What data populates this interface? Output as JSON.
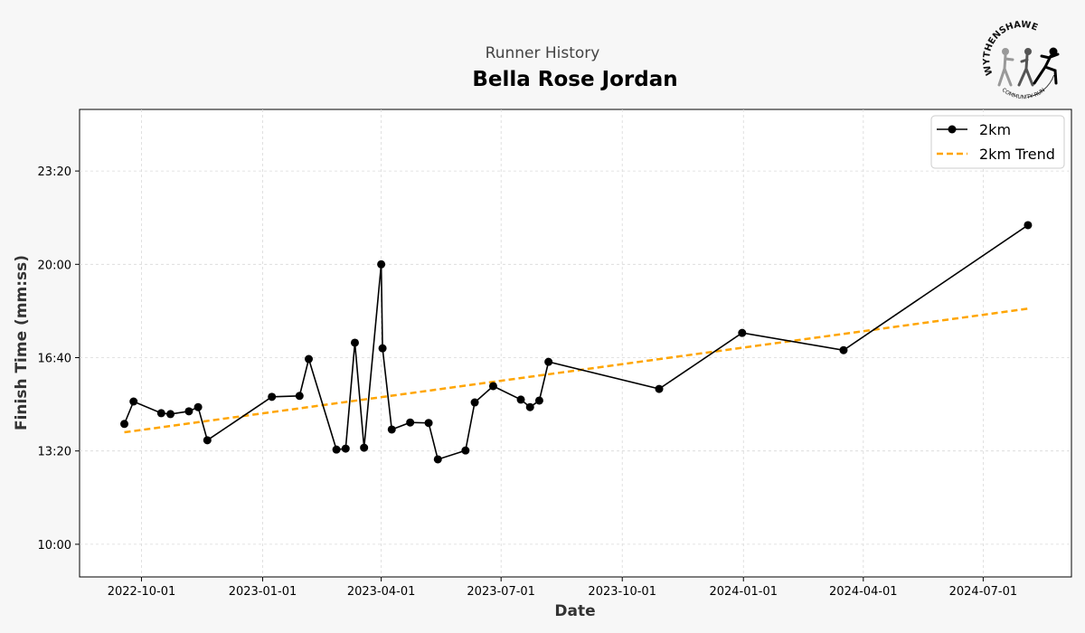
{
  "header": {
    "subtitle": "Runner History",
    "title": "Bella Rose Jordan",
    "logo_text": "WYTHENSHAWE COMMUNITY RUN"
  },
  "chart_data": {
    "type": "line",
    "title": "Bella Rose Jordan",
    "subtitle": "Runner History",
    "xlabel": "Date",
    "ylabel": "Finish Time (mm:ss)",
    "xlim": [
      "2022-08-15",
      "2024-09-06"
    ],
    "ylim_seconds": [
      530,
      1532
    ],
    "grid": true,
    "legend_position": "top-right",
    "x_ticks": [
      "2022-10-01",
      "2023-01-01",
      "2023-04-01",
      "2023-07-01",
      "2023-10-01",
      "2024-01-01",
      "2024-04-01",
      "2024-07-01"
    ],
    "y_ticks": [
      {
        "label": "10:00",
        "seconds": 600
      },
      {
        "label": "13:20",
        "seconds": 800
      },
      {
        "label": "16:40",
        "seconds": 1000
      },
      {
        "label": "20:00",
        "seconds": 1200
      },
      {
        "label": "23:20",
        "seconds": 1400
      }
    ],
    "series": [
      {
        "name": "2km",
        "color": "#000000",
        "style": "solid-markers",
        "points": [
          [
            "2022-09-18",
            "14:18"
          ],
          [
            "2022-09-25",
            "15:06"
          ],
          [
            "2022-10-16",
            "14:41"
          ],
          [
            "2022-10-23",
            "14:39"
          ],
          [
            "2022-11-06",
            "14:45"
          ],
          [
            "2022-11-13",
            "14:54"
          ],
          [
            "2022-11-20",
            "13:43"
          ],
          [
            "2023-01-08",
            "15:16"
          ],
          [
            "2023-01-29",
            "15:18"
          ],
          [
            "2023-02-05",
            "16:37"
          ],
          [
            "2023-02-26",
            "13:23"
          ],
          [
            "2023-03-05",
            "13:25"
          ],
          [
            "2023-03-12",
            "17:12"
          ],
          [
            "2023-03-19",
            "13:27"
          ],
          [
            "2023-04-01",
            "20:00"
          ],
          [
            "2023-04-02",
            "17:00"
          ],
          [
            "2023-04-09",
            "14:06"
          ],
          [
            "2023-04-23",
            "14:21"
          ],
          [
            "2023-05-07",
            "14:20"
          ],
          [
            "2023-05-14",
            "13:02"
          ],
          [
            "2023-06-04",
            "13:21"
          ],
          [
            "2023-06-11",
            "15:04"
          ],
          [
            "2023-06-25",
            "15:39"
          ],
          [
            "2023-07-16",
            "15:10"
          ],
          [
            "2023-07-23",
            "14:54"
          ],
          [
            "2023-07-30",
            "15:08"
          ],
          [
            "2023-08-06",
            "16:31"
          ],
          [
            "2023-10-29",
            "15:33"
          ],
          [
            "2023-12-31",
            "17:33"
          ],
          [
            "2024-03-17",
            "16:56"
          ],
          [
            "2024-08-04",
            "21:24"
          ]
        ]
      },
      {
        "name": "2km Trend",
        "color": "#FFA500",
        "style": "dashed",
        "points": [
          [
            "2022-09-18",
            "14:00"
          ],
          [
            "2024-08-04",
            "18:25"
          ]
        ]
      }
    ]
  }
}
